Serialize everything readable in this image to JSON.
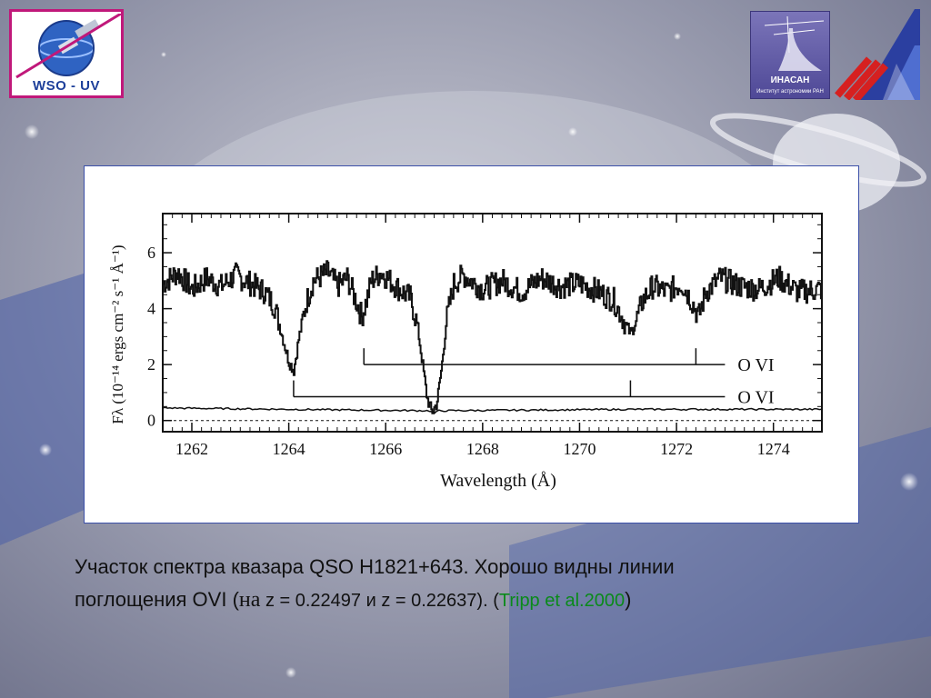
{
  "slide": {
    "logo_left_text": "WSO - UV",
    "logo_inasan_name": "ИНАСАН",
    "logo_inasan_sub": "Институт астрономии РАН",
    "caption": {
      "line1": "Участок спектра квазара QSO H1821+643. Хорошо видны линии",
      "line2_a": "поглощения OVI (",
      "line2_na": "на",
      "line2_z1": " z = 0.22497 и  z = 0.22637). (",
      "ref": "Tripp et al.2000",
      "line2_end": ")"
    },
    "colors": {
      "logo_border": "#c0187a",
      "logo_text": "#1d3f9a",
      "inasan_bg": "#5b55a3",
      "frame_border": "#3b4fa8",
      "ref_green": "#0a8a1a"
    }
  },
  "chart_data": {
    "type": "line",
    "xlabel": "Wavelength (Å)",
    "ylabel": "Fλ (10⁻¹⁴ ergs cm⁻² s⁻¹ Å⁻¹)",
    "xlim": [
      1261.4,
      1275.0
    ],
    "ylim": [
      -0.4,
      7.4
    ],
    "x_ticks": [
      1262,
      1264,
      1266,
      1268,
      1270,
      1272,
      1274
    ],
    "y_ticks": [
      0,
      2,
      4,
      6
    ],
    "x_tick_labels": [
      "1262",
      "1264",
      "1266",
      "1268",
      "1270",
      "1272",
      "1274"
    ],
    "y_tick_labels": [
      "0",
      "2",
      "4",
      "6"
    ],
    "grid": false,
    "zero_line": "dotted",
    "series": [
      {
        "x": [
          1261.4,
          1261.7,
          1262.0,
          1262.3,
          1262.6,
          1262.9,
          1263.2,
          1263.5,
          1263.7,
          1263.85,
          1264.0,
          1264.1,
          1264.2,
          1264.35,
          1264.5,
          1264.8,
          1265.0,
          1265.2,
          1265.4,
          1265.5,
          1265.6,
          1265.7,
          1265.9,
          1266.2,
          1266.5,
          1266.65,
          1266.75,
          1266.85,
          1266.95,
          1267.05,
          1267.15,
          1267.25,
          1267.4,
          1267.6,
          1268.0,
          1268.4,
          1268.8,
          1269.2,
          1269.6,
          1270.0,
          1270.4,
          1270.7,
          1270.9,
          1271.05,
          1271.15,
          1271.3,
          1271.5,
          1271.8,
          1272.1,
          1272.3,
          1272.45,
          1272.6,
          1272.9,
          1273.3,
          1273.7,
          1274.1,
          1274.5,
          1275.0
        ],
        "y": [
          4.9,
          5.3,
          4.7,
          5.1,
          4.8,
          5.2,
          4.9,
          4.6,
          4.1,
          3.1,
          2.1,
          1.8,
          2.9,
          4.2,
          5.0,
          5.3,
          4.8,
          5.1,
          4.2,
          3.7,
          4.3,
          5.0,
          5.3,
          4.8,
          4.4,
          3.4,
          2.1,
          0.8,
          0.3,
          0.6,
          1.9,
          3.6,
          4.9,
          5.2,
          4.7,
          5.0,
          4.6,
          5.1,
          4.8,
          4.9,
          4.6,
          4.3,
          3.6,
          3.1,
          3.5,
          4.3,
          4.8,
          4.6,
          4.9,
          4.3,
          3.7,
          4.6,
          5.1,
          4.8,
          4.7,
          5.1,
          4.6,
          4.7
        ]
      },
      {
        "x": [
          1261.4,
          1264.0,
          1266.9,
          1267.0,
          1267.1,
          1271.0,
          1275.0
        ],
        "y": [
          0.45,
          0.4,
          0.35,
          0.25,
          0.35,
          0.4,
          0.4
        ]
      }
    ],
    "annotations": [
      {
        "label": "O VI",
        "y": 2.0,
        "x_start": 1265.55,
        "x_end": 1273.0,
        "ticks": [
          1265.55,
          1272.4
        ]
      },
      {
        "label": "O VI",
        "y": 0.85,
        "x_start": 1264.1,
        "x_end": 1273.0,
        "ticks": [
          1264.1,
          1271.05
        ]
      }
    ]
  }
}
